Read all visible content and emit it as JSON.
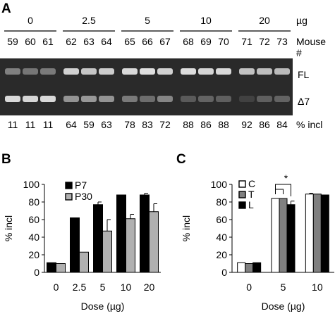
{
  "panel_a": {
    "letter": "A",
    "dose_unit": "µg",
    "dose_groups": [
      "0",
      "2.5",
      "5",
      "10",
      "20"
    ],
    "mouse_label": "Mouse",
    "mouse_hash": "#",
    "mice": [
      "59",
      "60",
      "61",
      "62",
      "63",
      "64",
      "65",
      "66",
      "67",
      "68",
      "69",
      "70",
      "71",
      "72",
      "73"
    ],
    "band_labels": {
      "full_length": "FL",
      "delta7": "Δ7"
    },
    "incl_values": [
      "11",
      "11",
      "11",
      "64",
      "59",
      "63",
      "78",
      "83",
      "72",
      "88",
      "86",
      "88",
      "92",
      "86",
      "84"
    ],
    "incl_label": "% incl",
    "fl_intensity": [
      0.45,
      0.4,
      0.42,
      0.88,
      0.82,
      0.85,
      0.92,
      0.95,
      0.88,
      0.94,
      0.9,
      0.92,
      0.8,
      0.78,
      0.76
    ],
    "d7_intensity": [
      0.92,
      0.9,
      0.92,
      0.55,
      0.58,
      0.55,
      0.42,
      0.35,
      0.48,
      0.25,
      0.3,
      0.28,
      0.12,
      0.28,
      0.3
    ]
  },
  "chart_data": [
    {
      "panel": "B",
      "type": "bar",
      "categories": [
        "0",
        "2.5",
        "5",
        "10",
        "20"
      ],
      "series": [
        {
          "name": "P7",
          "color": "#000000",
          "values": [
            11,
            62,
            77,
            88,
            88
          ],
          "errors": [
            0,
            0,
            3,
            0,
            2
          ]
        },
        {
          "name": "P30",
          "color": "#b0b0b0",
          "values": [
            10,
            23,
            47,
            61,
            69
          ],
          "errors": [
            0,
            0,
            13,
            5,
            9
          ]
        }
      ],
      "xlabel": "Dose (µg)",
      "ylabel": "% incl",
      "ylim": [
        0,
        100
      ],
      "yticks": [
        "0",
        "20",
        "40",
        "60",
        "80",
        "100"
      ],
      "legend_position": "top-left",
      "grid": false
    },
    {
      "panel": "C",
      "type": "bar",
      "categories": [
        "0",
        "5",
        "10"
      ],
      "series": [
        {
          "name": "C",
          "color": "#ffffff",
          "values": [
            11,
            84,
            89
          ],
          "errors": [
            0,
            0,
            1
          ]
        },
        {
          "name": "T",
          "color": "#808080",
          "values": [
            10,
            84,
            89
          ],
          "errors": [
            0,
            0,
            0
          ]
        },
        {
          "name": "L",
          "color": "#000000",
          "values": [
            11,
            77,
            88
          ],
          "errors": [
            0,
            4,
            0
          ]
        }
      ],
      "xlabel": "Dose (µg)",
      "ylabel": "% incl",
      "ylim": [
        0,
        100
      ],
      "yticks": [
        "0",
        "20",
        "40",
        "60",
        "80",
        "100"
      ],
      "legend_position": "top-left",
      "grid": false,
      "annotation": "*"
    }
  ]
}
